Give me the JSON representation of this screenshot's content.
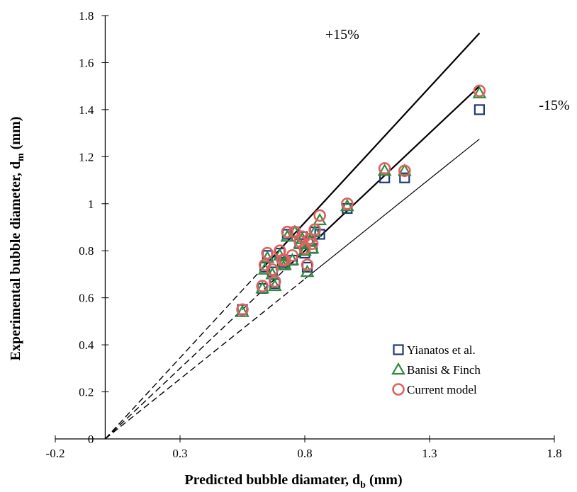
{
  "chart_data": {
    "type": "scatter",
    "title": "",
    "xlabel": "Predicted bubble diamater, d",
    "xlabel_sub": "b",
    "xlabel_unit": " (mm)",
    "ylabel": "Experimental bubble diameter, d",
    "ylabel_sub": "m",
    "ylabel_unit": " (mm)",
    "xlim": [
      -0.2,
      1.8
    ],
    "ylim": [
      0,
      1.8
    ],
    "x_ticks": [
      -0.2,
      0.3,
      0.8,
      1.3,
      1.8
    ],
    "x_tick_labels": [
      "-0.2",
      "0.3",
      "0.8",
      "1.3",
      "1.8"
    ],
    "y_ticks": [
      0,
      0.2,
      0.4,
      0.6,
      0.8,
      1,
      1.2,
      1.4,
      1.6,
      1.8
    ],
    "y_tick_labels": [
      "0",
      "0.2",
      "0.4",
      "0.6",
      "0.8",
      "1",
      "1.2",
      "1.4",
      "1.6",
      "1.8"
    ],
    "grid": false,
    "legend_position": "bottom-right",
    "annotations": [
      {
        "text": "+15%",
        "x": 0.95,
        "y": 1.7
      },
      {
        "text": "-15%",
        "x": 1.8,
        "y": 1.4
      }
    ],
    "reference_lines": [
      {
        "name": "parity",
        "slope": 1.0,
        "x_range": [
          0,
          1.5
        ],
        "dashed_until": 0.72,
        "stroke_width": 2.2
      },
      {
        "name": "+15%",
        "slope": 1.15,
        "x_range": [
          0,
          1.5
        ],
        "dashed_until": 0.62,
        "stroke_width": 2.2
      },
      {
        "name": "-15%",
        "slope": 0.85,
        "x_range": [
          0,
          1.5
        ],
        "dashed_until": 0.8,
        "stroke_width": 1.2
      }
    ],
    "series": [
      {
        "name": "Yianatos et al.",
        "marker": "square",
        "color": "#1f3a78",
        "points": [
          [
            0.55,
            0.55
          ],
          [
            0.63,
            0.64
          ],
          [
            0.64,
            0.73
          ],
          [
            0.65,
            0.78
          ],
          [
            0.67,
            0.71
          ],
          [
            0.68,
            0.66
          ],
          [
            0.7,
            0.79
          ],
          [
            0.71,
            0.75
          ],
          [
            0.72,
            0.74
          ],
          [
            0.73,
            0.87
          ],
          [
            0.75,
            0.76
          ],
          [
            0.76,
            0.88
          ],
          [
            0.78,
            0.83
          ],
          [
            0.79,
            0.86
          ],
          [
            0.8,
            0.79
          ],
          [
            0.81,
            0.73
          ],
          [
            0.82,
            0.84
          ],
          [
            0.83,
            0.81
          ],
          [
            0.84,
            0.88
          ],
          [
            0.86,
            0.87
          ],
          [
            0.97,
            0.98
          ],
          [
            1.12,
            1.11
          ],
          [
            1.2,
            1.11
          ],
          [
            1.5,
            1.4
          ]
        ]
      },
      {
        "name": "Banisi & Finch",
        "marker": "triangle",
        "color": "#2e8b3a",
        "points": [
          [
            0.55,
            0.54
          ],
          [
            0.63,
            0.64
          ],
          [
            0.64,
            0.72
          ],
          [
            0.65,
            0.77
          ],
          [
            0.67,
            0.7
          ],
          [
            0.68,
            0.65
          ],
          [
            0.7,
            0.78
          ],
          [
            0.71,
            0.74
          ],
          [
            0.72,
            0.74
          ],
          [
            0.73,
            0.86
          ],
          [
            0.75,
            0.76
          ],
          [
            0.76,
            0.88
          ],
          [
            0.78,
            0.83
          ],
          [
            0.79,
            0.85
          ],
          [
            0.8,
            0.8
          ],
          [
            0.81,
            0.71
          ],
          [
            0.82,
            0.84
          ],
          [
            0.83,
            0.81
          ],
          [
            0.84,
            0.88
          ],
          [
            0.86,
            0.93
          ],
          [
            0.97,
            0.99
          ],
          [
            1.12,
            1.14
          ],
          [
            1.2,
            1.14
          ],
          [
            1.5,
            1.47
          ]
        ]
      },
      {
        "name": "Current model",
        "marker": "circle",
        "color": "#e06060",
        "points": [
          [
            0.55,
            0.55
          ],
          [
            0.63,
            0.65
          ],
          [
            0.64,
            0.74
          ],
          [
            0.65,
            0.79
          ],
          [
            0.67,
            0.72
          ],
          [
            0.68,
            0.67
          ],
          [
            0.7,
            0.8
          ],
          [
            0.71,
            0.76
          ],
          [
            0.72,
            0.76
          ],
          [
            0.73,
            0.88
          ],
          [
            0.75,
            0.78
          ],
          [
            0.76,
            0.88
          ],
          [
            0.78,
            0.84
          ],
          [
            0.79,
            0.86
          ],
          [
            0.8,
            0.81
          ],
          [
            0.81,
            0.74
          ],
          [
            0.82,
            0.85
          ],
          [
            0.83,
            0.83
          ],
          [
            0.84,
            0.89
          ],
          [
            0.86,
            0.95
          ],
          [
            0.97,
            1.0
          ],
          [
            1.12,
            1.15
          ],
          [
            1.2,
            1.14
          ],
          [
            1.5,
            1.48
          ]
        ]
      }
    ]
  }
}
